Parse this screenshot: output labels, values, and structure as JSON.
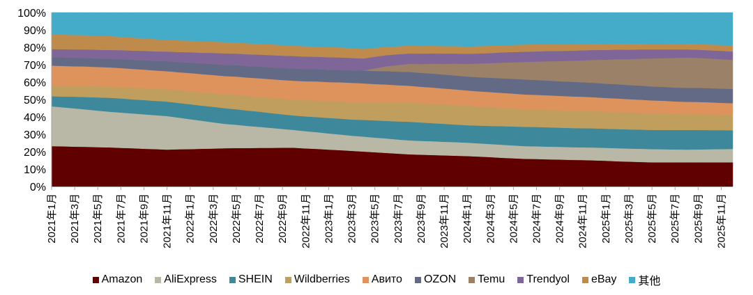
{
  "chart_data": {
    "type": "area",
    "stacked": true,
    "normalized": true,
    "title": "",
    "xlabel": "",
    "ylabel": "",
    "ylim": [
      0,
      100
    ],
    "y_ticks": [
      "0%",
      "10%",
      "20%",
      "30%",
      "40%",
      "50%",
      "60%",
      "70%",
      "80%",
      "90%",
      "100%"
    ],
    "x_tick_labels": [
      "2021年1月",
      "2021年3月",
      "2021年5月",
      "2021年7月",
      "2021年9月",
      "2021年11月",
      "2022年1月",
      "2022年3月",
      "2022年5月",
      "2022年7月",
      "2022年9月",
      "2022年11月",
      "2023年1月",
      "2023年3月",
      "2023年5月",
      "2023年7月",
      "2023年9月",
      "2023年11月",
      "2024年1月",
      "2024年3月",
      "2024年5月",
      "2024年7月",
      "2024年9月",
      "2024年11月",
      "2025年1月",
      "2025年3月",
      "2025年5月",
      "2025年7月",
      "2025年9月",
      "2025年11月"
    ],
    "x_start": "2021-01",
    "x_end": "2025-12",
    "x_step": "1 month",
    "grid": false,
    "legend_position": "bottom",
    "series": [
      {
        "name": "Amazon",
        "color": "#600000",
        "values": [
          23.2,
          23.1,
          22.9,
          22.8,
          22.6,
          22.5,
          22.2,
          22.0,
          21.7,
          21.5,
          21.2,
          21.4,
          21.5,
          21.7,
          21.8,
          22.0,
          22.1,
          22.1,
          22.2,
          22.2,
          22.3,
          22.3,
          21.9,
          21.6,
          21.2,
          20.9,
          20.5,
          20.1,
          19.7,
          19.3,
          18.9,
          18.5,
          18.3,
          18.1,
          17.9,
          17.7,
          17.5,
          17.2,
          16.9,
          16.5,
          16.2,
          15.9,
          15.8,
          15.6,
          15.5,
          15.3,
          15.2,
          15.0,
          14.8,
          14.5,
          14.3,
          14.1,
          13.9,
          13.9,
          13.9,
          13.9,
          13.9,
          13.9,
          13.9,
          13.9
        ]
      },
      {
        "name": "AliExpress",
        "color": "#B9B8A7",
        "values": [
          22.9,
          22.4,
          22.0,
          21.5,
          21.0,
          20.5,
          20.3,
          20.0,
          19.8,
          19.5,
          19.3,
          18.2,
          17.2,
          16.1,
          15.1,
          14.0,
          13.4,
          12.7,
          12.1,
          11.5,
          10.8,
          10.2,
          9.9,
          9.6,
          9.3,
          9.0,
          8.7,
          8.6,
          8.4,
          8.3,
          8.1,
          8.0,
          7.9,
          7.9,
          7.8,
          7.8,
          7.7,
          7.6,
          7.5,
          7.5,
          7.4,
          7.3,
          7.3,
          7.3,
          7.3,
          7.3,
          7.3,
          7.4,
          7.4,
          7.5,
          7.5,
          7.6,
          7.6,
          7.5,
          7.4,
          7.3,
          7.4,
          7.5,
          7.6,
          7.7
        ]
      },
      {
        "name": "SHEIN",
        "color": "#3D889B",
        "values": [
          5.8,
          6.2,
          6.7,
          7.1,
          7.6,
          8.0,
          8.1,
          8.1,
          8.2,
          8.2,
          8.3,
          8.4,
          8.6,
          8.7,
          8.9,
          9.0,
          8.9,
          8.8,
          8.7,
          8.5,
          8.4,
          8.3,
          8.5,
          8.7,
          8.9,
          9.1,
          9.3,
          9.6,
          9.9,
          10.1,
          10.4,
          10.7,
          10.6,
          10.4,
          10.3,
          10.1,
          10.0,
          10.2,
          10.4,
          10.7,
          10.9,
          11.1,
          11.1,
          11.1,
          11.0,
          11.0,
          11.0,
          11.0,
          11.0,
          11.0,
          11.0,
          11.0,
          11.0,
          11.1,
          11.2,
          11.3,
          11.2,
          11.0,
          10.9,
          10.7
        ]
      },
      {
        "name": "Wildberries",
        "color": "#BF9E5E",
        "values": [
          6.2,
          6.3,
          6.3,
          6.4,
          6.4,
          6.5,
          6.6,
          6.7,
          6.9,
          7.0,
          7.1,
          7.3,
          7.5,
          7.6,
          7.8,
          8.0,
          8.2,
          8.4,
          8.5,
          8.7,
          8.9,
          9.1,
          9.3,
          9.5,
          9.6,
          9.8,
          10.0,
          10.2,
          10.4,
          10.7,
          10.9,
          11.1,
          11.1,
          11.2,
          11.2,
          11.3,
          11.3,
          11.0,
          10.8,
          10.5,
          10.3,
          10.0,
          10.0,
          10.0,
          10.0,
          10.0,
          10.0,
          9.9,
          9.8,
          9.7,
          9.6,
          9.5,
          9.4,
          9.3,
          9.1,
          9.0,
          9.0,
          9.0,
          8.9,
          8.9
        ]
      },
      {
        "name": "Авито",
        "color": "#DE935D",
        "values": [
          11.4,
          11.3,
          11.2,
          11.2,
          11.1,
          11.0,
          10.9,
          10.8,
          10.6,
          10.5,
          10.4,
          10.4,
          10.4,
          10.5,
          10.5,
          10.5,
          10.6,
          10.6,
          10.7,
          10.8,
          10.8,
          10.9,
          10.9,
          11.0,
          11.0,
          11.1,
          11.1,
          10.8,
          10.5,
          10.2,
          9.9,
          9.6,
          9.4,
          9.3,
          9.1,
          8.9,
          8.7,
          8.7,
          8.7,
          8.6,
          8.6,
          8.6,
          8.5,
          8.4,
          8.3,
          8.2,
          8.1,
          8.0,
          7.9,
          7.9,
          7.8,
          7.7,
          7.6,
          7.5,
          7.3,
          7.2,
          7.1,
          7.0,
          6.8,
          6.7
        ]
      },
      {
        "name": "OZON",
        "color": "#636A86",
        "values": [
          5.0,
          5.0,
          5.0,
          5.0,
          5.0,
          5.0,
          5.2,
          5.3,
          5.5,
          5.6,
          5.8,
          5.9,
          6.1,
          6.2,
          6.4,
          6.5,
          6.6,
          6.7,
          6.8,
          6.9,
          7.0,
          7.1,
          7.1,
          7.1,
          7.2,
          7.2,
          7.2,
          7.4,
          7.5,
          7.7,
          7.8,
          8.0,
          8.0,
          8.0,
          8.0,
          8.0,
          8.0,
          8.1,
          8.2,
          8.4,
          8.5,
          8.6,
          8.5,
          8.5,
          8.4,
          8.4,
          8.3,
          8.3,
          8.2,
          8.2,
          8.1,
          8.1,
          8.0,
          8.0,
          8.0,
          8.0,
          8.1,
          8.1,
          8.2,
          8.2
        ]
      },
      {
        "name": "Temu",
        "color": "#9B8168",
        "values": [
          0,
          0,
          0,
          0,
          0,
          0,
          0,
          0,
          0,
          0,
          0,
          0,
          0,
          0,
          0,
          0,
          0,
          0,
          0,
          0,
          0,
          0,
          0,
          0,
          0,
          0,
          0,
          0.0,
          1.5,
          2.8,
          3.8,
          4.6,
          5.1,
          5.7,
          6.2,
          6.8,
          7.3,
          7.9,
          8.4,
          9.0,
          9.5,
          10.1,
          10.6,
          11.1,
          11.6,
          12.1,
          12.6,
          13.2,
          13.8,
          14.4,
          14.9,
          15.5,
          16.1,
          16.5,
          17.0,
          17.4,
          17.2,
          17.1,
          16.9,
          16.7
        ]
      },
      {
        "name": "Trendyol",
        "color": "#7F6698",
        "values": [
          4.5,
          4.6,
          4.7,
          4.8,
          4.9,
          5.0,
          5.1,
          5.2,
          5.3,
          5.4,
          5.5,
          5.7,
          5.9,
          6.1,
          6.3,
          6.5,
          6.6,
          6.7,
          6.8,
          6.9,
          7.0,
          7.1,
          7.1,
          7.1,
          7.1,
          7.1,
          7.1,
          6.9,
          6.7,
          6.4,
          6.2,
          6.0,
          6.0,
          5.9,
          5.9,
          5.8,
          5.8,
          5.8,
          5.8,
          5.9,
          5.9,
          5.9,
          5.9,
          5.9,
          5.8,
          5.8,
          5.8,
          5.7,
          5.6,
          5.5,
          5.4,
          5.3,
          5.2,
          5.0,
          4.9,
          4.7,
          4.7,
          4.7,
          4.8,
          4.8
        ]
      },
      {
        "name": "eBay",
        "color": "#BF8B4D",
        "values": [
          8.5,
          8.4,
          8.3,
          8.2,
          8.1,
          8.0,
          7.7,
          7.5,
          7.2,
          7.0,
          6.7,
          6.7,
          6.6,
          6.6,
          6.5,
          6.5,
          6.4,
          6.3,
          6.2,
          6.2,
          6.1,
          6.0,
          5.9,
          5.9,
          5.8,
          5.8,
          5.7,
          5.5,
          5.1,
          4.8,
          4.6,
          4.5,
          4.4,
          4.4,
          4.3,
          4.3,
          4.2,
          4.2,
          4.2,
          4.1,
          4.1,
          4.1,
          4.0,
          3.9,
          3.8,
          3.7,
          3.6,
          3.5,
          3.4,
          3.4,
          3.3,
          3.2,
          3.1,
          3.1,
          3.2,
          3.2,
          3.3,
          3.3,
          3.4,
          3.4
        ]
      },
      {
        "name": "其他",
        "color": "#44ACC8",
        "values": [
          12.5,
          12.7,
          12.9,
          13.0,
          13.3,
          13.5,
          13.9,
          14.4,
          14.8,
          15.3,
          15.7,
          16.0,
          16.2,
          16.5,
          16.7,
          17.0,
          17.2,
          17.7,
          18.0,
          18.3,
          18.7,
          19.0,
          19.4,
          19.5,
          19.9,
          20.0,
          20.4,
          20.9,
          20.3,
          19.7,
          19.4,
          19.0,
          19.2,
          19.1,
          19.3,
          19.3,
          19.5,
          19.3,
          19.1,
          18.8,
          18.6,
          18.4,
          18.3,
          18.2,
          18.3,
          18.2,
          18.1,
          18.0,
          18.1,
          17.9,
          18.1,
          18.0,
          18.1,
          18.1,
          18.0,
          18.0,
          18.1,
          18.4,
          18.6,
          19.0
        ]
      }
    ]
  }
}
